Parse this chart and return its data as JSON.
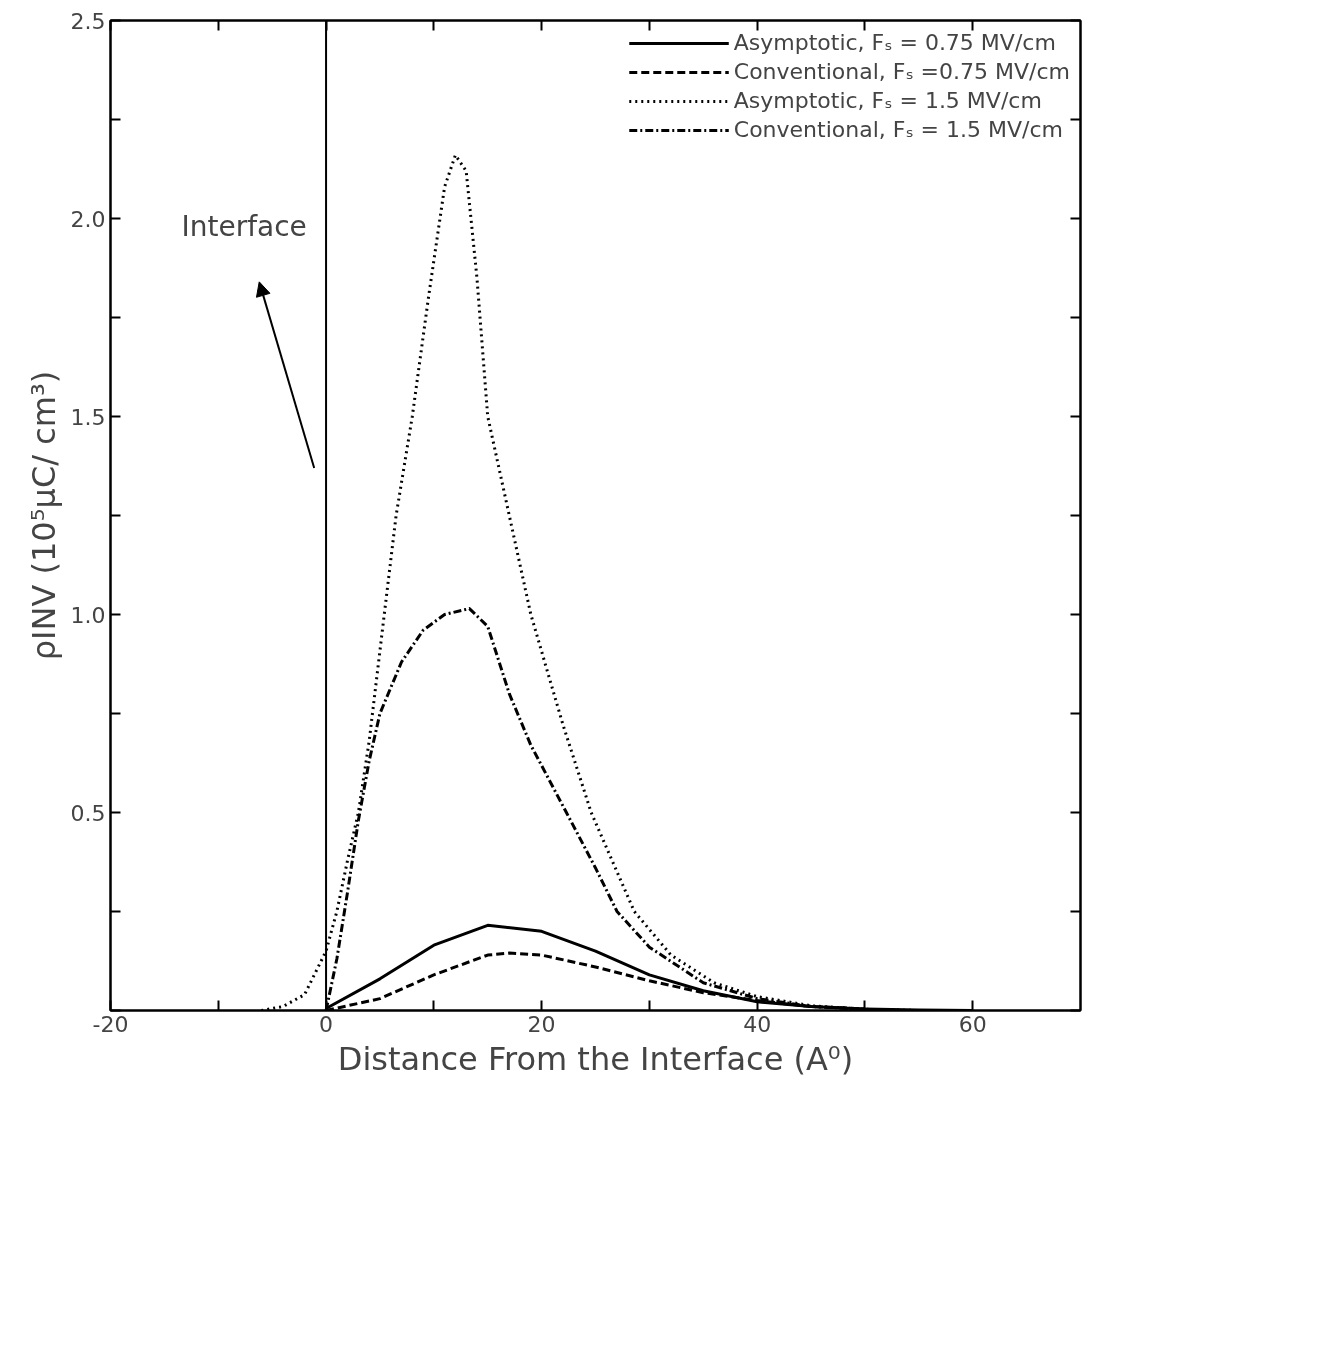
{
  "chart_data": {
    "type": "line",
    "xlabel": "Distance From the Interface (A⁰)",
    "ylabel": "ρINV (10⁵μC/ cm³)",
    "xlim": [
      -20,
      70
    ],
    "ylim": [
      0,
      2.5
    ],
    "xticks": [
      -20,
      {
        "value": -10,
        "label": null
      },
      0,
      {
        "value": 10,
        "label": null
      },
      20,
      {
        "value": 30,
        "label": null
      },
      40,
      {
        "value": 50,
        "label": null
      },
      60
    ],
    "yticks": [
      {
        "value": 0,
        "label": null
      },
      {
        "value": 0.25,
        "label": null
      },
      0.5,
      {
        "value": 0.75,
        "label": null
      },
      {
        "value": 1,
        "label": "1.0"
      },
      {
        "value": 1.25,
        "label": null
      },
      1.5,
      {
        "value": 1.75,
        "label": null
      },
      {
        "value": 2,
        "label": "2.0"
      },
      {
        "value": 2.25,
        "label": null
      },
      2.5
    ],
    "grid": false,
    "legend": "top right",
    "marker": "none",
    "ref_lines": [
      {
        "axis": "x",
        "value": 0,
        "color": "#000000",
        "line_style": "solid"
      }
    ],
    "annotations": [
      "Interface"
    ],
    "series": [
      {
        "name": "Asymptotic, Fₛ = 0.75 MV/cm",
        "color": "#000000",
        "line_style": "solid",
        "x": [
          0,
          5,
          10,
          15,
          20,
          25,
          30,
          35,
          40,
          45,
          50,
          55,
          60
        ],
        "values": [
          0.005,
          0.08,
          0.165,
          0.215,
          0.2,
          0.15,
          0.09,
          0.05,
          0.022,
          0.01,
          0.004,
          0.001,
          0
        ]
      },
      {
        "name": "Conventional, Fₛ =0.75 MV/cm",
        "color": "#000000",
        "line_style": "dashed",
        "x": [
          0,
          5,
          10,
          15,
          17,
          20,
          25,
          30,
          35,
          40,
          45,
          50
        ],
        "values": [
          0,
          0.03,
          0.09,
          0.14,
          0.145,
          0.14,
          0.11,
          0.075,
          0.045,
          0.025,
          0.01,
          0.004
        ]
      },
      {
        "name": "Asymptotic, Fₛ = 1.5 MV/cm",
        "color": "#000000",
        "line_style": "dotted",
        "x": [
          -6,
          -4,
          -2,
          0,
          1,
          2,
          3,
          4,
          5.4,
          6.5,
          8,
          9.5,
          11,
          12,
          13,
          14,
          15,
          17,
          19,
          22,
          24.6,
          28.6,
          32,
          36,
          40,
          45,
          50,
          55
        ],
        "values": [
          0,
          0.01,
          0.04,
          0.15,
          0.25,
          0.38,
          0.5,
          0.68,
          1.0,
          1.25,
          1.5,
          1.8,
          2.08,
          2.16,
          2.12,
          1.85,
          1.5,
          1.25,
          1.0,
          0.72,
          0.5,
          0.25,
          0.14,
          0.07,
          0.035,
          0.012,
          0.003,
          0
        ]
      },
      {
        "name": "Conventional, Fₛ = 1.5 MV/cm",
        "color": "#000000",
        "line_style": "dashdot",
        "x": [
          0,
          1,
          2,
          3,
          4,
          5,
          7,
          9,
          11,
          13.3,
          15,
          17,
          19,
          22.3,
          25,
          27,
          30,
          35,
          40,
          45,
          50
        ],
        "values": [
          0,
          0.13,
          0.3,
          0.48,
          0.63,
          0.75,
          0.88,
          0.96,
          1.0,
          1.015,
          0.97,
          0.8,
          0.67,
          0.5,
          0.36,
          0.25,
          0.16,
          0.07,
          0.03,
          0.01,
          0.003
        ]
      }
    ]
  }
}
